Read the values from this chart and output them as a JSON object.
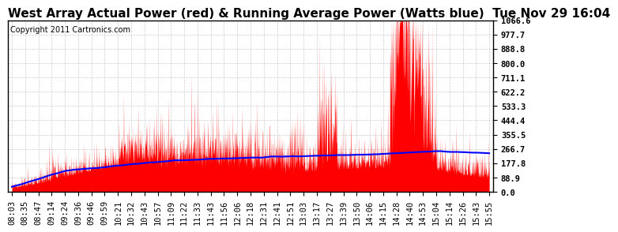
{
  "title": "West Array Actual Power (red) & Running Average Power (Watts blue)  Tue Nov 29 16:04",
  "copyright": "Copyright 2011 Cartronics.com",
  "ymax": 1066.6,
  "ymin": 0.0,
  "yticks": [
    0.0,
    88.9,
    177.8,
    266.7,
    355.5,
    444.4,
    533.3,
    622.2,
    711.1,
    800.0,
    888.8,
    977.7,
    1066.6
  ],
  "ytick_labels": [
    "0.0",
    "88.9",
    "177.8",
    "266.7",
    "355.5",
    "444.4",
    "533.3",
    "622.2",
    "711.1",
    "800.0",
    "888.8",
    "977.7",
    "1066.6"
  ],
  "xtick_labels": [
    "08:03",
    "08:35",
    "08:47",
    "09:14",
    "09:24",
    "09:36",
    "09:46",
    "09:59",
    "10:21",
    "10:32",
    "10:43",
    "10:57",
    "11:09",
    "11:22",
    "11:33",
    "11:43",
    "11:56",
    "12:06",
    "12:18",
    "12:31",
    "12:41",
    "12:51",
    "13:03",
    "13:17",
    "13:27",
    "13:39",
    "13:50",
    "14:06",
    "14:15",
    "14:28",
    "14:40",
    "14:53",
    "15:04",
    "15:14",
    "15:26",
    "15:43",
    "15:55"
  ],
  "bg_color": "#ffffff",
  "plot_bg": "#ffffff",
  "grid_color": "#cccccc",
  "red_color": "#ff0000",
  "blue_color": "#0000ff",
  "title_fontsize": 11,
  "tick_fontsize": 7.5,
  "copyright_fontsize": 7
}
